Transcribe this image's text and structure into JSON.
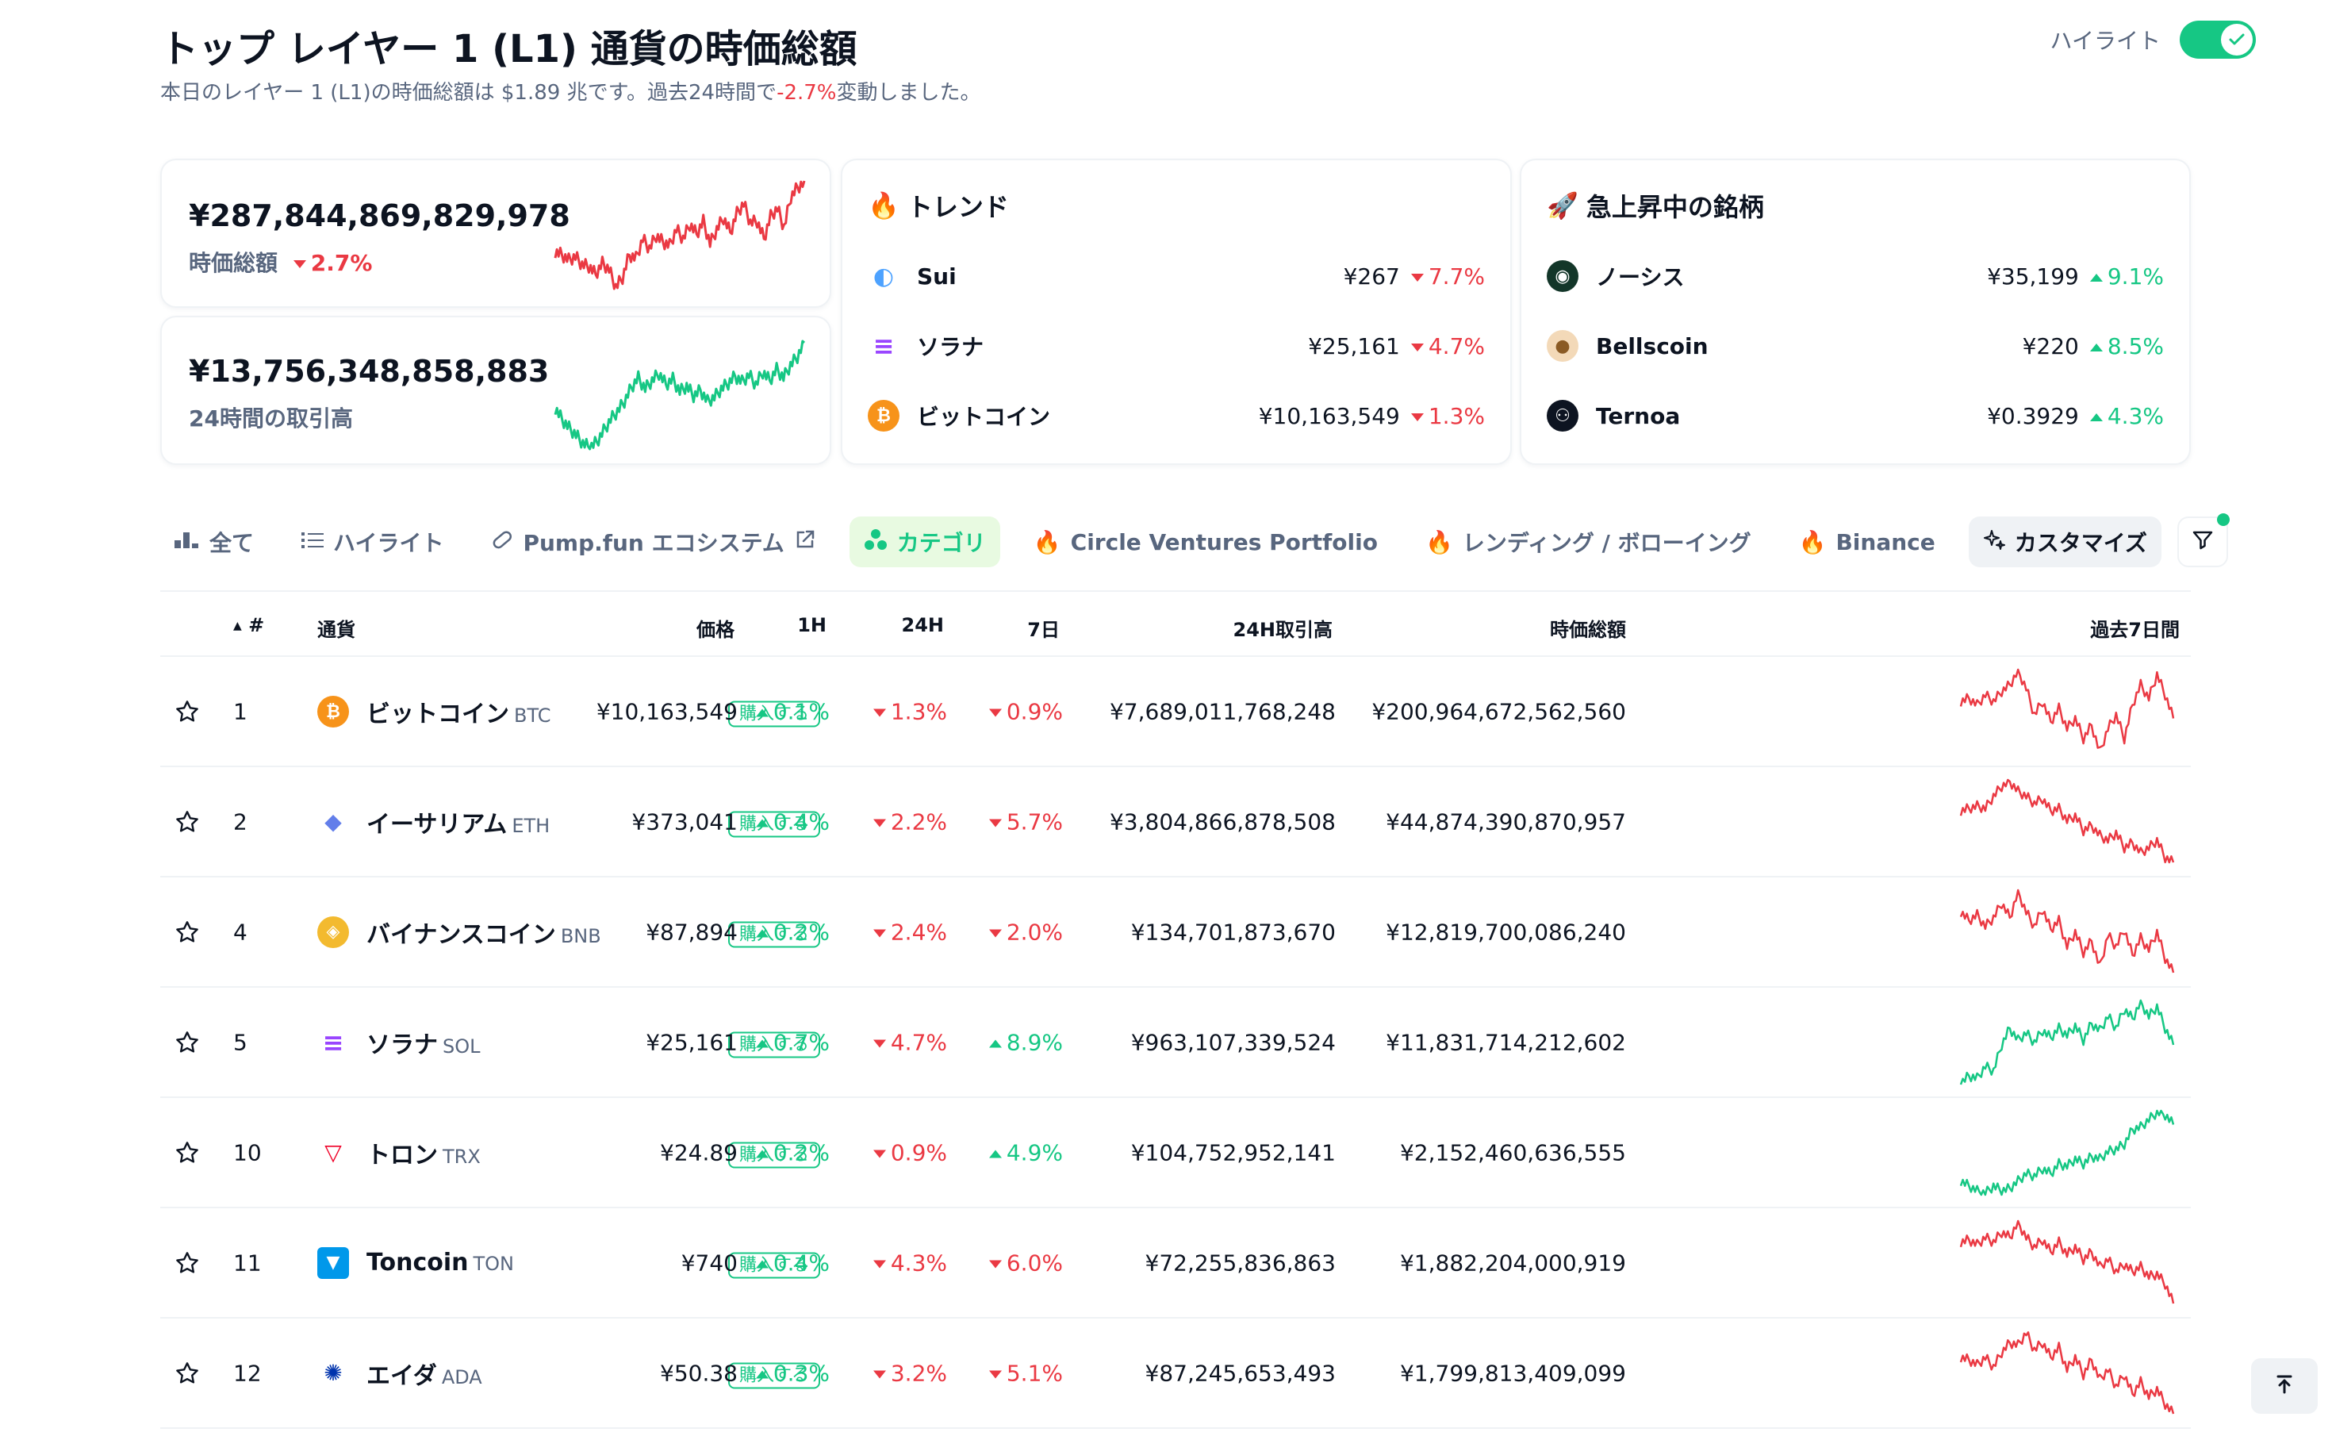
{
  "header": {
    "title": "トップ レイヤー 1 (L1) 通貨の時価総額",
    "subtitle_prefix": "本日のレイヤー 1 (L1)の時価総額は $1.89 兆です。過去24時間で",
    "subtitle_change": "-2.7%",
    "subtitle_suffix": "変動しました。",
    "highlight_label": "ハイライト",
    "highlight_on": true
  },
  "kpis": [
    {
      "value": "¥287,844,869,829,978",
      "label": "時価総額",
      "change": "2.7%",
      "direction": "down",
      "color": "#ea3943",
      "spark": [
        52,
        50,
        47,
        49,
        44,
        43,
        38,
        45,
        41,
        30,
        36,
        50,
        48,
        60,
        54,
        62,
        58,
        56,
        66,
        60,
        69,
        63,
        71,
        57,
        66,
        73,
        64,
        76,
        82,
        70,
        71,
        60,
        74,
        79,
        67,
        86,
        92,
        95
      ]
    },
    {
      "value": "¥13,756,348,858,883",
      "label": "24時間の取引高",
      "color": "#16c784",
      "spark": [
        38,
        30,
        24,
        19,
        13,
        10,
        14,
        22,
        30,
        36,
        43,
        53,
        60,
        52,
        58,
        63,
        55,
        59,
        50,
        54,
        47,
        51,
        43,
        46,
        52,
        56,
        61,
        57,
        62,
        55,
        64,
        58,
        66,
        60,
        69,
        75,
        85
      ]
    }
  ],
  "trending": {
    "title": "トレンド",
    "items": [
      {
        "name": "Sui",
        "price": "¥267",
        "change": "7.7%",
        "direction": "down",
        "icon": "sui-icon",
        "color": "#4da2ff"
      },
      {
        "name": "ソラナ",
        "price": "¥25,161",
        "change": "4.7%",
        "direction": "down",
        "icon": "solana-icon",
        "color": "#9945ff"
      },
      {
        "name": "ビットコイン",
        "price": "¥10,163,549",
        "change": "1.3%",
        "direction": "down",
        "icon": "bitcoin-icon",
        "color": "#f7931a"
      }
    ]
  },
  "gainers": {
    "title": "急上昇中の銘柄",
    "items": [
      {
        "name": "ノーシス",
        "price": "¥35,199",
        "change": "9.1%",
        "direction": "up",
        "icon": "gnosis-icon",
        "color": "#133629"
      },
      {
        "name": "Bellscoin",
        "price": "¥220",
        "change": "8.5%",
        "direction": "up",
        "icon": "bellscoin-icon",
        "color": "#f3d9b8"
      },
      {
        "name": "Ternoa",
        "price": "¥0.3929",
        "change": "4.3%",
        "direction": "up",
        "icon": "ternoa-icon",
        "color": "#0d1421"
      }
    ]
  },
  "tabs": [
    {
      "label": "全て",
      "icon": "bar-chart-icon"
    },
    {
      "label": "ハイライト",
      "icon": "list-icon"
    },
    {
      "label": "Pump.fun エコシステム",
      "icon": "pill-icon"
    },
    {
      "label": "カテゴリ",
      "icon": "category-icon",
      "active": true
    },
    {
      "label": "Circle Ventures Portfolio",
      "icon": "fire-icon"
    },
    {
      "label": "レンディング / ボローイング",
      "icon": "fire-icon"
    },
    {
      "label": "Binance",
      "icon": "fire-icon"
    },
    {
      "label": "カスタマイズ",
      "icon": "sparkle-icon"
    }
  ],
  "table": {
    "columns": {
      "rank": "#",
      "name": "通貨",
      "price": "価格",
      "h1": "1H",
      "h24": "24H",
      "d7": "7日",
      "volume": "24H取引高",
      "mcap": "時価総額",
      "spark": "過去7日間"
    },
    "buy_label": "購入する",
    "rows": [
      {
        "rank": "1",
        "name": "ビットコイン",
        "symbol": "BTC",
        "price": "¥10,163,549",
        "h1": "0.1%",
        "h1_dir": "up",
        "h24": "1.3%",
        "h24_dir": "down",
        "d7": "0.9%",
        "d7_dir": "down",
        "volume": "¥7,689,011,768,248",
        "mcap": "¥200,964,672,562,560",
        "icon": "bitcoin-icon",
        "color": "#f7931a",
        "spark_color": "#ea3943",
        "spark": [
          60,
          62,
          58,
          64,
          60,
          66,
          70,
          78,
          68,
          52,
          60,
          48,
          56,
          44,
          50,
          38,
          46,
          30,
          44,
          52,
          38,
          58,
          70,
          62,
          76,
          64,
          50
        ]
      },
      {
        "rank": "2",
        "name": "イーサリアム",
        "symbol": "ETH",
        "price": "¥373,041",
        "h1": "0.4%",
        "h1_dir": "up",
        "h24": "2.2%",
        "h24_dir": "down",
        "d7": "5.7%",
        "d7_dir": "down",
        "volume": "¥3,804,866,878,508",
        "mcap": "¥44,874,390,870,957",
        "icon": "ethereum-icon",
        "color": "#627eea",
        "spark_color": "#ea3943",
        "spark": [
          60,
          62,
          64,
          62,
          72,
          80,
          84,
          76,
          72,
          66,
          70,
          60,
          62,
          52,
          56,
          44,
          48,
          40,
          36,
          42,
          30,
          34,
          26,
          30,
          36,
          22,
          18
        ]
      },
      {
        "rank": "4",
        "name": "バイナンスコイン",
        "symbol": "BNB",
        "price": "¥87,894",
        "h1": "0.2%",
        "h1_dir": "up",
        "h24": "2.4%",
        "h24_dir": "down",
        "d7": "2.0%",
        "d7_dir": "down",
        "volume": "¥134,701,873,670",
        "mcap": "¥12,819,700,086,240",
        "icon": "bnb-icon",
        "color": "#f3ba2f",
        "spark_color": "#ea3943",
        "spark": [
          68,
          62,
          66,
          58,
          64,
          74,
          64,
          82,
          68,
          58,
          70,
          56,
          62,
          44,
          54,
          40,
          48,
          30,
          52,
          44,
          56,
          38,
          50,
          42,
          54,
          36,
          26
        ]
      },
      {
        "rank": "5",
        "name": "ソラナ",
        "symbol": "SOL",
        "price": "¥25,161",
        "h1": "0.7%",
        "h1_dir": "up",
        "h24": "4.7%",
        "h24_dir": "down",
        "d7": "8.9%",
        "d7_dir": "up",
        "volume": "¥963,107,339,524",
        "mcap": "¥11,831,714,212,602",
        "icon": "solana-icon",
        "color": "#9945ff",
        "spark_color": "#16c784",
        "spark": [
          24,
          30,
          28,
          38,
          34,
          56,
          70,
          60,
          66,
          58,
          68,
          62,
          70,
          64,
          72,
          60,
          74,
          68,
          80,
          70,
          86,
          78,
          92,
          80,
          88,
          70,
          56
        ]
      },
      {
        "rank": "10",
        "name": "トロン",
        "symbol": "TRX",
        "price": "¥24.89",
        "h1": "0.2%",
        "h1_dir": "up",
        "h24": "0.9%",
        "h24_dir": "down",
        "d7": "4.9%",
        "d7_dir": "up",
        "volume": "¥104,752,952,141",
        "mcap": "¥2,152,460,636,555",
        "icon": "tron-icon",
        "color": "#ef0027",
        "spark_color": "#16c784",
        "spark": [
          30,
          26,
          22,
          20,
          26,
          22,
          24,
          30,
          36,
          34,
          40,
          36,
          44,
          42,
          48,
          44,
          50,
          48,
          54,
          56,
          60,
          72,
          74,
          80,
          86,
          84,
          76
        ]
      },
      {
        "rank": "11",
        "name": "Toncoin",
        "symbol": "TON",
        "price": "¥740",
        "h1": "0.4%",
        "h1_dir": "up",
        "h24": "4.3%",
        "h24_dir": "down",
        "d7": "6.0%",
        "d7_dir": "down",
        "volume": "¥72,255,836,863",
        "mcap": "¥1,882,204,000,919",
        "icon": "toncoin-icon",
        "color": "#0098ea",
        "spark_color": "#ea3943",
        "spark": [
          70,
          72,
          68,
          74,
          70,
          78,
          74,
          86,
          74,
          66,
          72,
          62,
          70,
          60,
          66,
          56,
          62,
          50,
          56,
          46,
          52,
          46,
          50,
          42,
          44,
          36,
          20
        ]
      },
      {
        "rank": "12",
        "name": "エイダ",
        "symbol": "ADA",
        "price": "¥50.38",
        "h1": "0.3%",
        "h1_dir": "up",
        "h24": "3.2%",
        "h24_dir": "down",
        "d7": "5.1%",
        "d7_dir": "down",
        "volume": "¥87,245,653,493",
        "mcap": "¥1,799,813,409,099",
        "icon": "cardano-icon",
        "color": "#0033ad",
        "spark_color": "#ea3943",
        "spark": [
          60,
          58,
          54,
          60,
          52,
          64,
          72,
          70,
          80,
          66,
          72,
          60,
          68,
          50,
          60,
          46,
          58,
          42,
          50,
          36,
          46,
          30,
          40,
          28,
          34,
          22,
          14
        ]
      }
    ]
  }
}
